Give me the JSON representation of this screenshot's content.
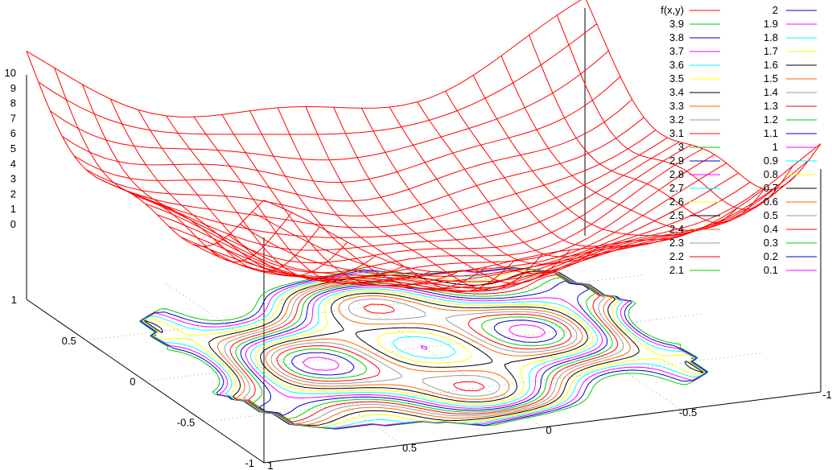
{
  "chart_data": {
    "type": "surface",
    "title": "",
    "surface": {
      "name": "f(x,y)",
      "color": "#ff0000",
      "z_range": [
        0,
        10
      ]
    },
    "x": {
      "range": [
        -1,
        1
      ],
      "ticks": [
        1,
        0.5,
        0,
        -0.5,
        -1
      ]
    },
    "y": {
      "range": [
        -1,
        1
      ],
      "ticks": [
        1,
        0.5,
        0,
        -0.5,
        -1
      ]
    },
    "z": {
      "ticks": [
        10,
        9,
        8,
        7,
        6,
        5,
        4,
        3,
        2,
        1,
        0
      ]
    },
    "grid": true,
    "legend_position": "top-right",
    "contour_levels": [
      {
        "label": "3.9",
        "color": "#00cc00"
      },
      {
        "label": "3.8",
        "color": "#0000cc"
      },
      {
        "label": "3.7",
        "color": "#ff00ff"
      },
      {
        "label": "3.6",
        "color": "#00ffff"
      },
      {
        "label": "3.5",
        "color": "#ffff00"
      },
      {
        "label": "3.4",
        "color": "#000000"
      },
      {
        "label": "3.3",
        "color": "#ff6600"
      },
      {
        "label": "3.2",
        "color": "#999999"
      },
      {
        "label": "3.1",
        "color": "#ff0000"
      },
      {
        "label": "3",
        "color": "#00cc00"
      },
      {
        "label": "2.9",
        "color": "#0000cc"
      },
      {
        "label": "2.8",
        "color": "#ff00ff"
      },
      {
        "label": "2.7",
        "color": "#00ffff"
      },
      {
        "label": "2.6",
        "color": "#ffff00"
      },
      {
        "label": "2.5",
        "color": "#000000"
      },
      {
        "label": "2.4",
        "color": "#ff6600"
      },
      {
        "label": "2.3",
        "color": "#999999"
      },
      {
        "label": "2.2",
        "color": "#ff0000"
      },
      {
        "label": "2.1",
        "color": "#00cc00"
      },
      {
        "label": "2",
        "color": "#0000cc"
      },
      {
        "label": "1.9",
        "color": "#ff00ff"
      },
      {
        "label": "1.8",
        "color": "#00ffff"
      },
      {
        "label": "1.7",
        "color": "#ffff00"
      },
      {
        "label": "1.6",
        "color": "#000000"
      },
      {
        "label": "1.5",
        "color": "#ff6600"
      },
      {
        "label": "1.4",
        "color": "#999999"
      },
      {
        "label": "1.3",
        "color": "#ff0000"
      },
      {
        "label": "1.2",
        "color": "#00cc00"
      },
      {
        "label": "1.1",
        "color": "#0000cc"
      },
      {
        "label": "1",
        "color": "#ff00ff"
      },
      {
        "label": "0.9",
        "color": "#00ffff"
      },
      {
        "label": "0.8",
        "color": "#ffff00"
      },
      {
        "label": "0.7",
        "color": "#000000"
      },
      {
        "label": "0.6",
        "color": "#ff6600"
      },
      {
        "label": "0.5",
        "color": "#999999"
      },
      {
        "label": "0.4",
        "color": "#ff0000"
      },
      {
        "label": "0.3",
        "color": "#00cc00"
      },
      {
        "label": "0.2",
        "color": "#0000cc"
      },
      {
        "label": "0.1",
        "color": "#ff00ff"
      }
    ]
  }
}
